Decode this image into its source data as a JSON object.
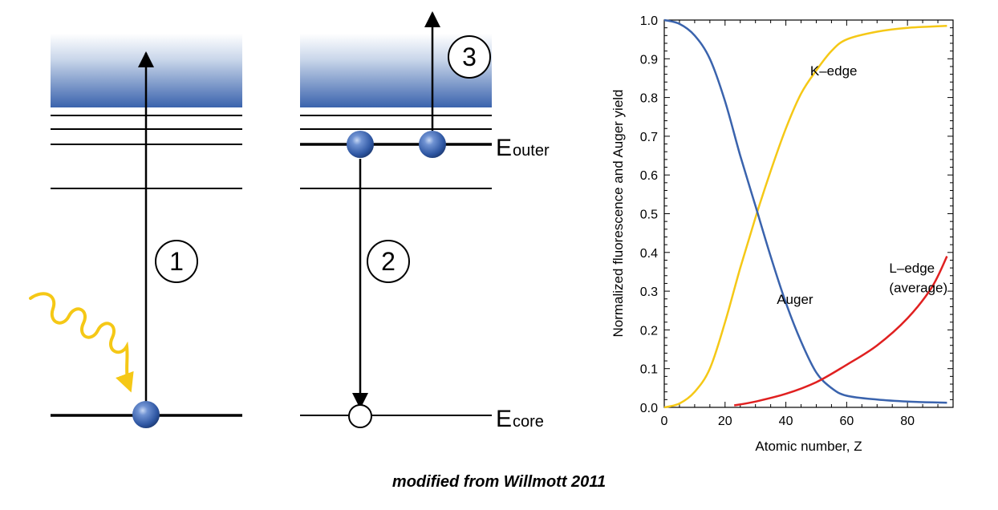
{
  "diagram": {
    "step_labels": [
      "1",
      "2",
      "3"
    ],
    "energy_labels": {
      "outer_main": "E",
      "outer_sub": "outer",
      "core_main": "E",
      "core_sub": "core"
    },
    "colors": {
      "continuum_top": "#ffffff",
      "continuum_bottom": "#3a63ad",
      "electron": "#3a63ad",
      "photon": "#f5c816"
    }
  },
  "chart_data": {
    "type": "line",
    "xlabel": "Atomic number, Z",
    "ylabel": "Normalized fluorescence and Auger yield",
    "xlim": [
      0,
      95
    ],
    "ylim": [
      0,
      1.0
    ],
    "xticks": [
      0,
      20,
      40,
      60,
      80
    ],
    "yticks": [
      0.0,
      0.1,
      0.2,
      0.3,
      0.4,
      0.5,
      0.6,
      0.7,
      0.8,
      0.9,
      1.0
    ],
    "ytick_labels": [
      "0.0",
      "0.1",
      "0.2",
      "0.3",
      "0.4",
      "0.5",
      "0.6",
      "0.7",
      "0.8",
      "0.9",
      "1.0"
    ],
    "series": [
      {
        "name": "K–edge",
        "color": "#f5c816",
        "x": [
          0,
          5,
          10,
          15,
          20,
          25,
          30,
          35,
          40,
          45,
          50,
          55,
          60,
          70,
          80,
          93
        ],
        "y": [
          0.0,
          0.01,
          0.04,
          0.1,
          0.22,
          0.36,
          0.49,
          0.61,
          0.72,
          0.81,
          0.87,
          0.92,
          0.95,
          0.97,
          0.98,
          0.985
        ]
      },
      {
        "name": "Auger",
        "color": "#3a63ad",
        "x": [
          0,
          5,
          10,
          15,
          20,
          25,
          30,
          35,
          40,
          45,
          50,
          55,
          60,
          70,
          80,
          93
        ],
        "y": [
          1.0,
          0.99,
          0.96,
          0.9,
          0.79,
          0.65,
          0.52,
          0.39,
          0.27,
          0.17,
          0.09,
          0.05,
          0.03,
          0.02,
          0.015,
          0.012
        ]
      },
      {
        "name": "L–edge (average)",
        "color": "#e02020",
        "x": [
          23,
          30,
          40,
          50,
          60,
          70,
          80,
          88,
          93
        ],
        "y": [
          0.005,
          0.015,
          0.035,
          0.065,
          0.11,
          0.16,
          0.23,
          0.31,
          0.39
        ]
      }
    ],
    "annotations": [
      {
        "text": "K–edge",
        "x": 48,
        "y": 0.87
      },
      {
        "text": "Auger",
        "x": 37,
        "y": 0.28
      },
      {
        "text": "L–edge",
        "x": 74,
        "y": 0.36
      },
      {
        "text": "(average)",
        "x": 74,
        "y": 0.31
      }
    ]
  },
  "caption": "modified from Willmott 2011"
}
